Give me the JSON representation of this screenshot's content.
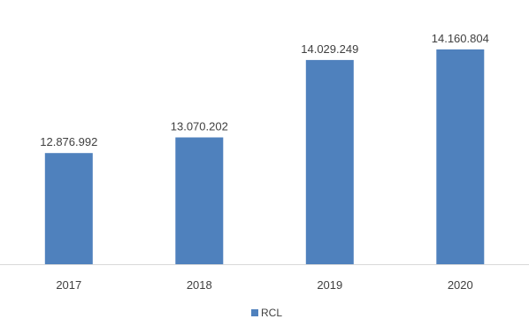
{
  "chart_data": {
    "type": "bar",
    "categories": [
      "2017",
      "2018",
      "2019",
      "2020"
    ],
    "series": [
      {
        "name": "RCL",
        "values": [
          12876992,
          13070202,
          14029249,
          14160804
        ],
        "labels": [
          "12.876.992",
          "13.070.202",
          "14.029.249",
          "14.160.804"
        ],
        "color": "#4F81BD"
      }
    ],
    "title": "",
    "xlabel": "",
    "ylabel": "",
    "ylim": [
      11500000,
      14400000
    ],
    "grid": false,
    "legend": "bottom"
  }
}
